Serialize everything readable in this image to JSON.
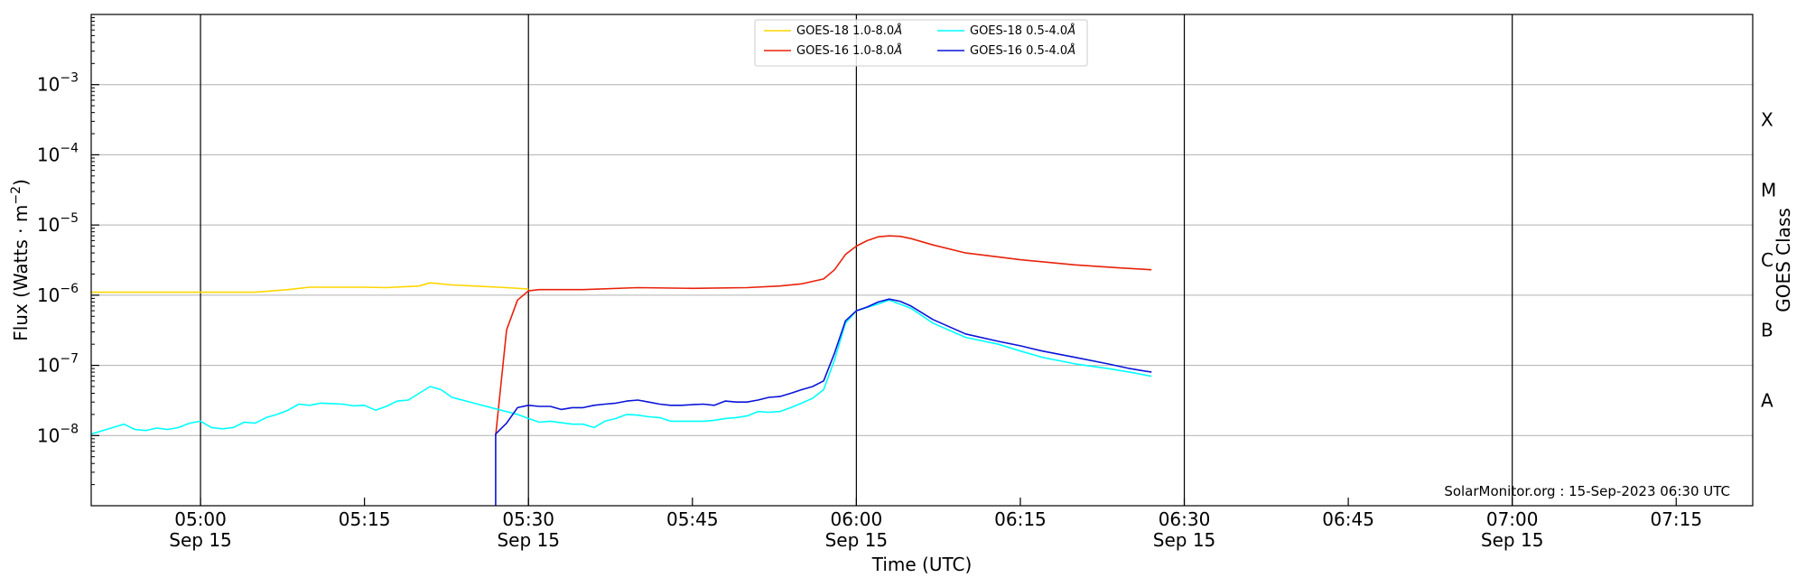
{
  "chart_data": {
    "type": "line",
    "title": "",
    "xlabel": "Time (UTC)",
    "ylabel": "Flux (Watts · m",
    "ylabel_sup": "−2",
    "ylabel_close": ")",
    "y2label": "GOES Class",
    "y_scale": "log",
    "xlim": [
      "04:50",
      "07:22"
    ],
    "ylim": [
      1e-09,
      0.01
    ],
    "grid": "horizontal",
    "legend_position": "top-center",
    "credit": "SolarMonitor.org : 15-Sep-2023 06:30 UTC",
    "x_ticks": [
      {
        "time": "05:00",
        "label": "05:00",
        "date": "Sep 15"
      },
      {
        "time": "05:15",
        "label": "05:15",
        "date": ""
      },
      {
        "time": "05:30",
        "label": "05:30",
        "date": "Sep 15"
      },
      {
        "time": "05:45",
        "label": "05:45",
        "date": ""
      },
      {
        "time": "06:00",
        "label": "06:00",
        "date": "Sep 15"
      },
      {
        "time": "06:15",
        "label": "06:15",
        "date": ""
      },
      {
        "time": "06:30",
        "label": "06:30",
        "date": "Sep 15"
      },
      {
        "time": "06:45",
        "label": "06:45",
        "date": ""
      },
      {
        "time": "07:00",
        "label": "07:00",
        "date": "Sep 15"
      },
      {
        "time": "07:15",
        "label": "07:15",
        "date": ""
      }
    ],
    "vertical_lines": [
      "05:00",
      "05:30",
      "06:00",
      "06:30",
      "07:00"
    ],
    "y_ticks": [
      {
        "exp": -8,
        "base": "10",
        "sup": "−8"
      },
      {
        "exp": -7,
        "base": "10",
        "sup": "−7"
      },
      {
        "exp": -6,
        "base": "10",
        "sup": "−6"
      },
      {
        "exp": -5,
        "base": "10",
        "sup": "−5"
      },
      {
        "exp": -4,
        "base": "10",
        "sup": "−4"
      },
      {
        "exp": -3,
        "base": "10",
        "sup": "−3"
      }
    ],
    "goes_classes": [
      {
        "label": "A",
        "exp": -7.5
      },
      {
        "label": "B",
        "exp": -6.5
      },
      {
        "label": "C",
        "exp": -5.5
      },
      {
        "label": "M",
        "exp": -4.5
      },
      {
        "label": "X",
        "exp": -3.5
      }
    ],
    "series": [
      {
        "name": "GOES-18 1.0-8.0",
        "unit_symbol": "Å",
        "color": "#ffd500",
        "x": [
          "04:50",
          "04:55",
          "05:00",
          "05:05",
          "05:08",
          "05:10",
          "05:15",
          "05:17",
          "05:20",
          "05:21",
          "05:23",
          "05:25",
          "05:28",
          "05:30"
        ],
        "y": [
          1.1e-06,
          1.1e-06,
          1.1e-06,
          1.1e-06,
          1.2e-06,
          1.3e-06,
          1.3e-06,
          1.28e-06,
          1.35e-06,
          1.5e-06,
          1.4e-06,
          1.35e-06,
          1.28e-06,
          1.22e-06
        ]
      },
      {
        "name": "GOES-16 1.0-8.0",
        "unit_symbol": "Å",
        "color": "#e8220a",
        "x": [
          "05:27",
          "05:28",
          "05:29",
          "05:30",
          "05:31",
          "05:35",
          "05:40",
          "05:45",
          "05:50",
          "05:53",
          "05:55",
          "05:57",
          "05:58",
          "05:59",
          "06:00",
          "06:01",
          "06:02",
          "06:03",
          "06:04",
          "06:05",
          "06:07",
          "06:10",
          "06:15",
          "06:20",
          "06:24",
          "06:27"
        ],
        "y": [
          1e-08,
          3.2e-07,
          8.5e-07,
          1.15e-06,
          1.2e-06,
          1.2e-06,
          1.28e-06,
          1.25e-06,
          1.28e-06,
          1.35e-06,
          1.45e-06,
          1.7e-06,
          2.3e-06,
          3.8e-06,
          5e-06,
          6e-06,
          6.8e-06,
          7e-06,
          6.9e-06,
          6.4e-06,
          5.2e-06,
          4e-06,
          3.2e-06,
          2.7e-06,
          2.45e-06,
          2.3e-06
        ]
      },
      {
        "name": "GOES-18 0.5-4.0",
        "unit_symbol": "Å",
        "color": "#00ffff",
        "x": [
          "04:50",
          "04:52",
          "04:53",
          "04:54",
          "04:55",
          "04:56",
          "04:57",
          "04:58",
          "04:59",
          "05:00",
          "05:01",
          "05:02",
          "05:03",
          "05:04",
          "05:05",
          "05:06",
          "05:07",
          "05:08",
          "05:09",
          "05:10",
          "05:11",
          "05:12",
          "05:13",
          "05:14",
          "05:15",
          "05:16",
          "05:17",
          "05:18",
          "05:19",
          "05:20",
          "05:21",
          "05:22",
          "05:23",
          "05:25",
          "05:27",
          "05:29",
          "05:30",
          "05:31",
          "05:32",
          "05:34",
          "05:35",
          "05:36",
          "05:37",
          "05:38",
          "05:39",
          "05:40",
          "05:41",
          "05:42",
          "05:43",
          "05:44",
          "05:45",
          "05:46",
          "05:47",
          "05:48",
          "05:49",
          "05:50",
          "05:51",
          "05:52",
          "05:53",
          "05:54",
          "05:55",
          "05:56",
          "05:57",
          "05:58",
          "05:59",
          "06:00",
          "06:02",
          "06:03",
          "06:05",
          "06:07",
          "06:10",
          "06:13",
          "06:15",
          "06:17",
          "06:20",
          "06:23",
          "06:25",
          "06:27"
        ],
        "y": [
          1.05e-08,
          1.3e-08,
          1.45e-08,
          1.22e-08,
          1.18e-08,
          1.28e-08,
          1.22e-08,
          1.3e-08,
          1.5e-08,
          1.6e-08,
          1.3e-08,
          1.25e-08,
          1.3e-08,
          1.55e-08,
          1.5e-08,
          1.8e-08,
          2e-08,
          2.3e-08,
          2.8e-08,
          2.7e-08,
          2.9e-08,
          2.85e-08,
          2.8e-08,
          2.65e-08,
          2.7e-08,
          2.3e-08,
          2.6e-08,
          3.1e-08,
          3.2e-08,
          4e-08,
          5e-08,
          4.5e-08,
          3.5e-08,
          2.9e-08,
          2.4e-08,
          2e-08,
          1.75e-08,
          1.55e-08,
          1.6e-08,
          1.45e-08,
          1.45e-08,
          1.3e-08,
          1.6e-08,
          1.75e-08,
          2e-08,
          1.95e-08,
          1.85e-08,
          1.8e-08,
          1.6e-08,
          1.6e-08,
          1.6e-08,
          1.6e-08,
          1.65e-08,
          1.75e-08,
          1.8e-08,
          1.9e-08,
          2.2e-08,
          2.15e-08,
          2.2e-08,
          2.5e-08,
          2.9e-08,
          3.4e-08,
          4.5e-08,
          1.2e-07,
          4e-07,
          6e-07,
          7.5e-07,
          8.5e-07,
          6.5e-07,
          4e-07,
          2.5e-07,
          2e-07,
          1.6e-07,
          1.3e-07,
          1.05e-07,
          9e-08,
          8e-08,
          7e-08
        ]
      },
      {
        "name": "GOES-16 0.5-4.0",
        "unit_symbol": "Å",
        "color": "#0a14d8",
        "x": [
          "05:27",
          "05:27",
          "05:28",
          "05:29",
          "05:30",
          "05:31",
          "05:32",
          "05:33",
          "05:34",
          "05:35",
          "05:36",
          "05:37",
          "05:38",
          "05:39",
          "05:40",
          "05:41",
          "05:42",
          "05:43",
          "05:44",
          "05:45",
          "05:46",
          "05:47",
          "05:48",
          "05:49",
          "05:50",
          "05:51",
          "05:52",
          "05:53",
          "05:54",
          "05:55",
          "05:56",
          "05:57",
          "05:58",
          "05:59",
          "06:00",
          "06:01",
          "06:02",
          "06:03",
          "06:04",
          "06:05",
          "06:07",
          "06:10",
          "06:13",
          "06:15",
          "06:17",
          "06:20",
          "06:23",
          "06:25",
          "06:27"
        ],
        "y": [
          1e-09,
          1.05e-08,
          1.5e-08,
          2.5e-08,
          2.7e-08,
          2.6e-08,
          2.6e-08,
          2.35e-08,
          2.5e-08,
          2.5e-08,
          2.7e-08,
          2.8e-08,
          2.9e-08,
          3.1e-08,
          3.2e-08,
          3e-08,
          2.8e-08,
          2.7e-08,
          2.7e-08,
          2.75e-08,
          2.8e-08,
          2.7e-08,
          3.1e-08,
          3e-08,
          3e-08,
          3.2e-08,
          3.5e-08,
          3.6e-08,
          4e-08,
          4.5e-08,
          5e-08,
          6e-08,
          1.5e-07,
          4.3e-07,
          6e-07,
          6.8e-07,
          8e-07,
          8.8e-07,
          8.2e-07,
          7e-07,
          4.5e-07,
          2.8e-07,
          2.2e-07,
          1.9e-07,
          1.6e-07,
          1.3e-07,
          1.05e-07,
          9e-08,
          8e-08
        ]
      }
    ]
  }
}
